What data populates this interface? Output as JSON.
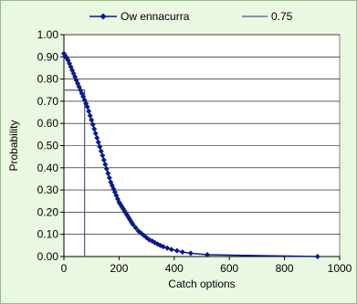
{
  "chart_data": {
    "type": "line",
    "title": "",
    "xlabel": "Catch options",
    "ylabel": "Probability",
    "xlim": [
      0,
      1000
    ],
    "ylim": [
      0,
      1
    ],
    "x_ticks": [
      "0",
      "200",
      "400",
      "600",
      "800",
      "1000"
    ],
    "y_ticks": [
      "0.00",
      "0.10",
      "0.20",
      "0.30",
      "0.40",
      "0.50",
      "0.60",
      "0.70",
      "0.80",
      "0.90",
      "1.00"
    ],
    "grid": "horizontal",
    "legend": "top",
    "series": [
      {
        "name": "Ow ennacurra",
        "color": "#0a1a8c",
        "marker": "diamond",
        "x": [
          0,
          5,
          10,
          15,
          20,
          25,
          30,
          35,
          40,
          45,
          50,
          55,
          60,
          65,
          70,
          75,
          80,
          85,
          90,
          95,
          100,
          105,
          110,
          115,
          120,
          125,
          130,
          135,
          140,
          145,
          150,
          155,
          160,
          165,
          170,
          175,
          180,
          185,
          190,
          195,
          200,
          205,
          210,
          215,
          220,
          225,
          230,
          235,
          240,
          245,
          250,
          260,
          270,
          280,
          290,
          300,
          310,
          320,
          330,
          340,
          350,
          360,
          375,
          390,
          410,
          430,
          460,
          520,
          920
        ],
        "y": [
          0.915,
          0.905,
          0.895,
          0.885,
          0.87,
          0.855,
          0.84,
          0.825,
          0.81,
          0.795,
          0.78,
          0.765,
          0.75,
          0.735,
          0.72,
          0.705,
          0.69,
          0.675,
          0.655,
          0.635,
          0.615,
          0.595,
          0.575,
          0.555,
          0.535,
          0.515,
          0.495,
          0.475,
          0.455,
          0.435,
          0.415,
          0.395,
          0.375,
          0.355,
          0.335,
          0.32,
          0.305,
          0.29,
          0.275,
          0.26,
          0.245,
          0.235,
          0.225,
          0.215,
          0.205,
          0.195,
          0.185,
          0.175,
          0.165,
          0.155,
          0.145,
          0.13,
          0.115,
          0.105,
          0.095,
          0.085,
          0.075,
          0.07,
          0.062,
          0.056,
          0.05,
          0.045,
          0.038,
          0.032,
          0.026,
          0.02,
          0.015,
          0.008,
          0.0
        ]
      },
      {
        "name": "0.75",
        "color": "#4a5a8c",
        "x": [
          0,
          75,
          75
        ],
        "y": [
          0.75,
          0.75,
          0
        ]
      }
    ]
  }
}
